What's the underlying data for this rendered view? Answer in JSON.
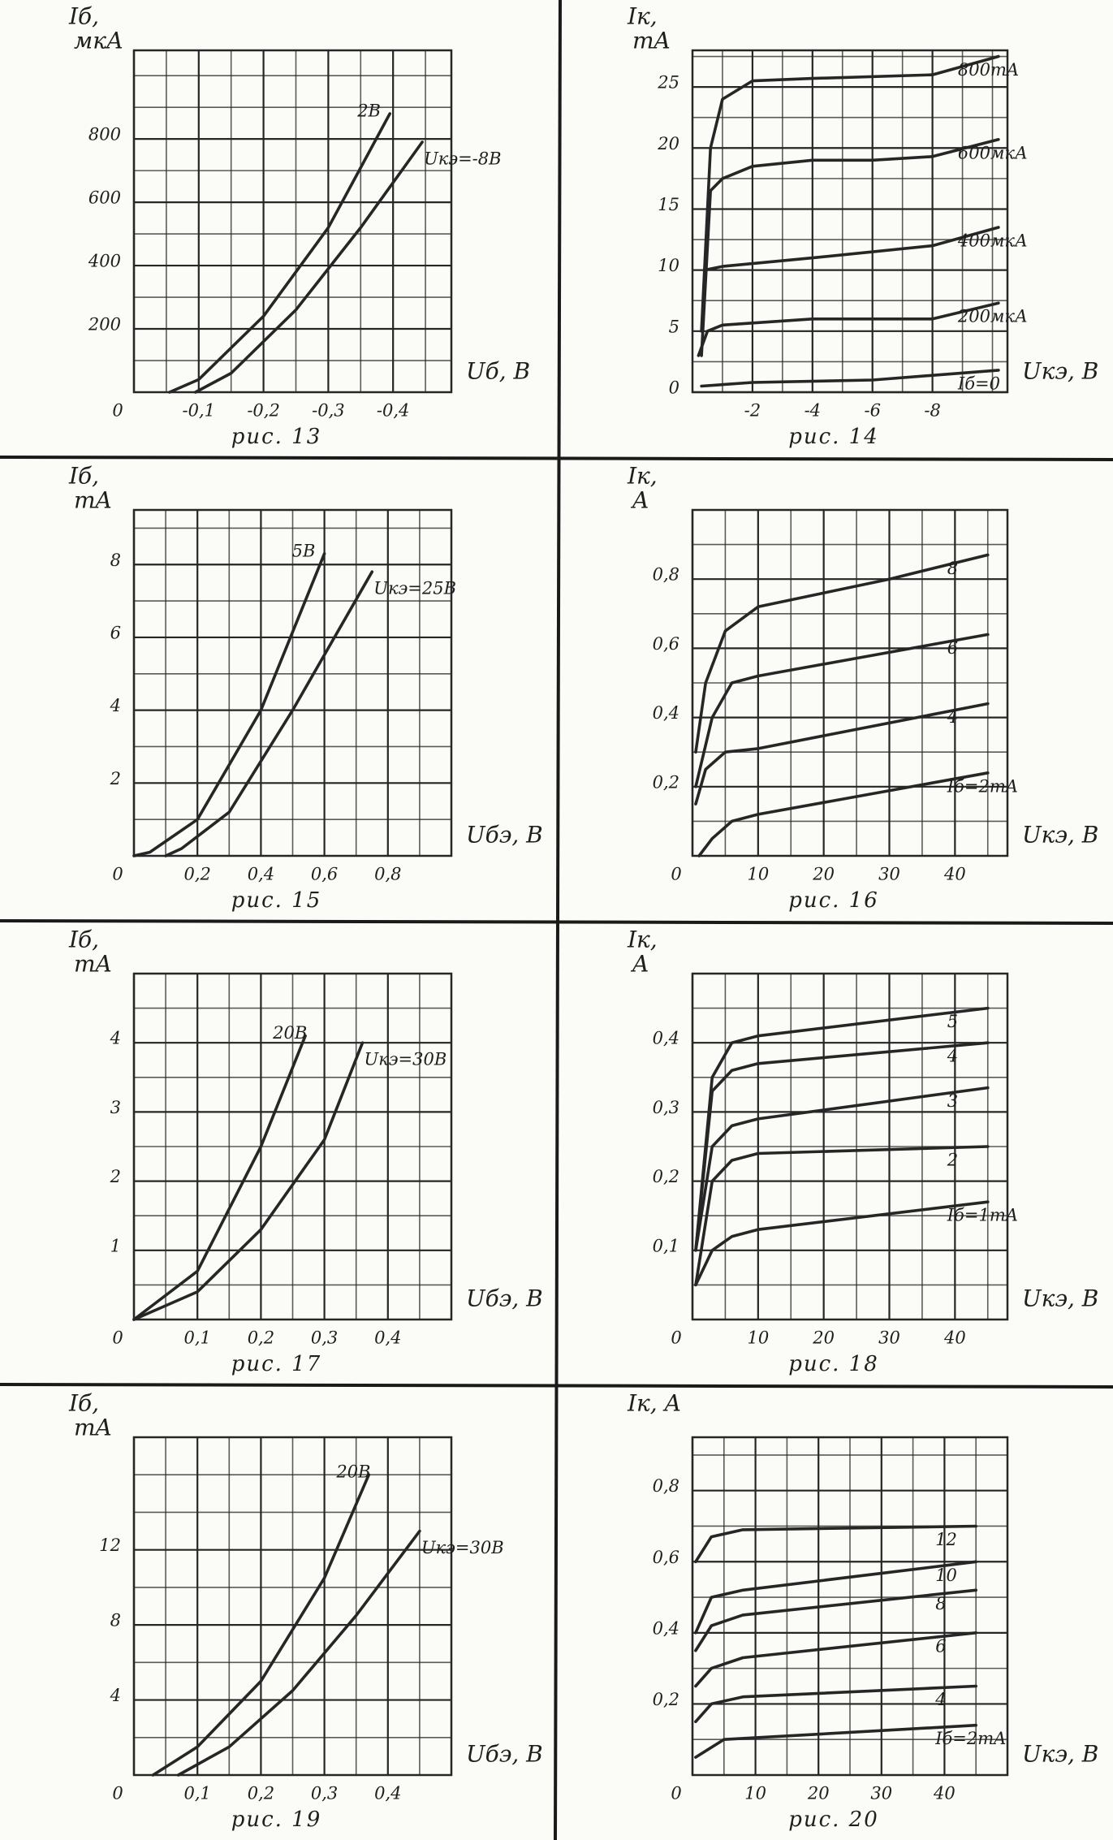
{
  "chart_data": [
    {
      "type": "line",
      "caption": "рис. 13",
      "ylabel": [
        "Iб,",
        "мкА"
      ],
      "xlabel": "Uб, В",
      "color": "#262626",
      "grid": true,
      "xlim": [
        0,
        -0.49
      ],
      "ylim": [
        0,
        1080
      ],
      "xticks": [
        0,
        {
          "value": -0.1,
          "label": "-0,1"
        },
        {
          "value": -0.2,
          "label": "-0,2"
        },
        {
          "value": -0.3,
          "label": "-0,3"
        },
        {
          "value": -0.4,
          "label": "-0,4"
        }
      ],
      "yticks": [
        200,
        400,
        600,
        800
      ],
      "series": [
        {
          "name": "2В",
          "x": [
            -0.055,
            -0.1,
            -0.2,
            -0.3,
            -0.395
          ],
          "values": [
            0,
            40,
            240,
            520,
            880
          ]
        },
        {
          "name": "Uкэ=-8В",
          "x": [
            -0.095,
            -0.15,
            -0.25,
            -0.35,
            -0.445
          ],
          "values": [
            0,
            60,
            260,
            520,
            790
          ]
        }
      ]
    },
    {
      "type": "line",
      "caption": "рис. 14",
      "ylabel": [
        "Iк,",
        "mA"
      ],
      "xlabel": "Uкэ, В",
      "color": "#262626",
      "grid": true,
      "xlim": [
        0,
        -10.5
      ],
      "ylim": [
        0,
        28
      ],
      "xticks": [
        -2,
        -4,
        -6,
        -8
      ],
      "yticks": [
        0,
        5,
        10,
        15,
        20,
        25
      ],
      "series": [
        {
          "name": "800mA",
          "x": [
            -0.3,
            -0.6,
            -1,
            -2,
            -4,
            -8,
            -10.2
          ],
          "values": [
            5,
            20,
            24,
            25.5,
            25.7,
            26,
            27.5
          ]
        },
        {
          "name": "600мкА",
          "x": [
            -0.3,
            -0.6,
            -1,
            -2,
            -4,
            -6,
            -8,
            -10.2
          ],
          "values": [
            3,
            16.5,
            17.5,
            18.5,
            19,
            19,
            19.3,
            20.7
          ]
        },
        {
          "name": "400мкА",
          "x": [
            -0.4,
            -1,
            -4,
            -8,
            -10.2
          ],
          "values": [
            10,
            10.3,
            11,
            12,
            13.5
          ]
        },
        {
          "name": "200мкА",
          "x": [
            -0.2,
            -0.5,
            -1,
            -4,
            -8,
            -10.2
          ],
          "values": [
            3,
            5,
            5.5,
            6,
            6,
            7.3
          ]
        },
        {
          "name": "Iб=0",
          "x": [
            -0.3,
            -2,
            -6,
            -10.2
          ],
          "values": [
            0.5,
            0.8,
            1,
            1.8
          ]
        }
      ]
    },
    {
      "type": "line",
      "caption": "рис. 15",
      "ylabel": [
        "Iб,",
        "mA"
      ],
      "xlabel": "Uбэ, В",
      "color": "#262626",
      "grid": true,
      "xlim": [
        0,
        1.0
      ],
      "ylim": [
        0,
        9.5
      ],
      "xticks": [
        0,
        {
          "value": 0.2,
          "label": "0,2"
        },
        {
          "value": 0.4,
          "label": "0,4"
        },
        {
          "value": 0.6,
          "label": "0,6"
        },
        {
          "value": 0.8,
          "label": "0,8"
        }
      ],
      "yticks": [
        2,
        4,
        6,
        8
      ],
      "series": [
        {
          "name": "5В",
          "x": [
            0,
            0.05,
            0.2,
            0.4,
            0.6
          ],
          "values": [
            0,
            0.1,
            1,
            4,
            8.3
          ]
        },
        {
          "name": "Uкэ=25В",
          "x": [
            0.1,
            0.15,
            0.3,
            0.5,
            0.75
          ],
          "values": [
            0,
            0.2,
            1.2,
            4,
            7.8
          ]
        }
      ]
    },
    {
      "type": "line",
      "caption": "рис. 16",
      "ylabel": [
        "Iк,",
        "A"
      ],
      "xlabel": "Uкэ, В",
      "color": "#262626",
      "grid": true,
      "xlim": [
        0,
        48
      ],
      "ylim": [
        0,
        1.0
      ],
      "xticks": [
        0,
        10,
        20,
        30,
        40
      ],
      "yticks": [
        {
          "value": 0.2,
          "label": "0,2"
        },
        {
          "value": 0.4,
          "label": "0,4"
        },
        {
          "value": 0.6,
          "label": "0,6"
        },
        {
          "value": 0.8,
          "label": "0,8"
        }
      ],
      "series": [
        {
          "name": "8",
          "x": [
            0.5,
            2,
            5,
            10,
            20,
            30,
            45
          ],
          "values": [
            0.3,
            0.5,
            0.65,
            0.72,
            0.76,
            0.8,
            0.87
          ]
        },
        {
          "name": "6",
          "x": [
            0.5,
            3,
            6,
            10,
            45
          ],
          "values": [
            0.2,
            0.4,
            0.5,
            0.52,
            0.64
          ]
        },
        {
          "name": "4",
          "x": [
            0.5,
            2,
            5,
            10,
            45
          ],
          "values": [
            0.15,
            0.25,
            0.3,
            0.31,
            0.44
          ]
        },
        {
          "name": "Iб=2mA",
          "x": [
            1,
            3,
            6,
            10,
            45
          ],
          "values": [
            0,
            0.05,
            0.1,
            0.12,
            0.24
          ]
        }
      ]
    },
    {
      "type": "line",
      "caption": "рис. 17",
      "ylabel": [
        "Iб,",
        "mA"
      ],
      "xlabel": "Uбэ, В",
      "color": "#262626",
      "grid": true,
      "xlim": [
        0,
        0.5
      ],
      "ylim": [
        0,
        5
      ],
      "xticks": [
        0,
        {
          "value": 0.1,
          "label": "0,1"
        },
        {
          "value": 0.2,
          "label": "0,2"
        },
        {
          "value": 0.3,
          "label": "0,3"
        },
        {
          "value": 0.4,
          "label": "0,4"
        }
      ],
      "yticks": [
        1,
        2,
        3,
        4
      ],
      "series": [
        {
          "name": "20В",
          "x": [
            0,
            0.1,
            0.2,
            0.27
          ],
          "values": [
            0,
            0.7,
            2.5,
            4.1
          ]
        },
        {
          "name": "Uкэ=30В",
          "x": [
            0,
            0.1,
            0.2,
            0.3,
            0.36
          ],
          "values": [
            0,
            0.4,
            1.3,
            2.6,
            4
          ]
        }
      ]
    },
    {
      "type": "line",
      "caption": "рис. 18",
      "ylabel": [
        "Iк,",
        "A"
      ],
      "xlabel": "Uкэ, В",
      "color": "#262626",
      "grid": true,
      "xlim": [
        0,
        48
      ],
      "ylim": [
        0,
        0.5
      ],
      "xticks": [
        0,
        10,
        20,
        30,
        40
      ],
      "yticks": [
        {
          "value": 0.1,
          "label": "0,1"
        },
        {
          "value": 0.2,
          "label": "0,2"
        },
        {
          "value": 0.3,
          "label": "0,3"
        },
        {
          "value": 0.4,
          "label": "0,4"
        }
      ],
      "series": [
        {
          "name": "5",
          "x": [
            0.5,
            3,
            6,
            10,
            45
          ],
          "values": [
            0.1,
            0.35,
            0.4,
            0.41,
            0.45
          ]
        },
        {
          "name": "4",
          "x": [
            0.5,
            3,
            6,
            10,
            45
          ],
          "values": [
            0.1,
            0.33,
            0.36,
            0.37,
            0.4
          ]
        },
        {
          "name": "3",
          "x": [
            0.5,
            3,
            6,
            10,
            45
          ],
          "values": [
            0.1,
            0.25,
            0.28,
            0.29,
            0.335
          ]
        },
        {
          "name": "2",
          "x": [
            0.5,
            3,
            6,
            10,
            45
          ],
          "values": [
            0.05,
            0.2,
            0.23,
            0.24,
            0.25
          ]
        },
        {
          "name": "Iб=1mA",
          "x": [
            0.5,
            3,
            6,
            10,
            45
          ],
          "values": [
            0.05,
            0.1,
            0.12,
            0.13,
            0.17
          ]
        }
      ]
    },
    {
      "type": "line",
      "caption": "рис. 19",
      "ylabel": [
        "Iб,",
        "mA"
      ],
      "xlabel": "Uбэ, В",
      "color": "#262626",
      "grid": true,
      "xlim": [
        0,
        0.5
      ],
      "ylim": [
        0,
        18
      ],
      "xticks": [
        0,
        {
          "value": 0.1,
          "label": "0,1"
        },
        {
          "value": 0.2,
          "label": "0,2"
        },
        {
          "value": 0.3,
          "label": "0,3"
        },
        {
          "value": 0.4,
          "label": "0,4"
        }
      ],
      "yticks": [
        4,
        8,
        12
      ],
      "series": [
        {
          "name": "20В",
          "x": [
            0.03,
            0.1,
            0.2,
            0.3,
            0.37
          ],
          "values": [
            0,
            1.5,
            5,
            10.5,
            16
          ]
        },
        {
          "name": "Uкэ=30В",
          "x": [
            0.07,
            0.15,
            0.25,
            0.35,
            0.45
          ],
          "values": [
            0,
            1.5,
            4.5,
            8.5,
            13
          ]
        }
      ]
    },
    {
      "type": "line",
      "caption": "рис. 20",
      "ylabel": [
        "Iк, A"
      ],
      "xlabel": "Uкэ, В",
      "color": "#262626",
      "grid": true,
      "xlim": [
        0,
        50
      ],
      "ylim": [
        0,
        0.95
      ],
      "xticks": [
        0,
        10,
        20,
        30,
        40
      ],
      "yticks": [
        {
          "value": 0.2,
          "label": "0,2"
        },
        {
          "value": 0.4,
          "label": "0,4"
        },
        {
          "value": 0.6,
          "label": "0,6"
        },
        {
          "value": 0.8,
          "label": "0,8"
        }
      ],
      "series": [
        {
          "name": "12",
          "x": [
            0.5,
            3,
            8,
            45
          ],
          "values": [
            0.6,
            0.67,
            0.69,
            0.7
          ]
        },
        {
          "name": "10",
          "x": [
            0.5,
            3,
            8,
            45
          ],
          "values": [
            0.4,
            0.5,
            0.52,
            0.6
          ]
        },
        {
          "name": "8",
          "x": [
            0.5,
            3,
            8,
            45
          ],
          "values": [
            0.35,
            0.42,
            0.45,
            0.52
          ]
        },
        {
          "name": "6",
          "x": [
            0.5,
            3,
            8,
            45
          ],
          "values": [
            0.25,
            0.3,
            0.33,
            0.4
          ]
        },
        {
          "name": "4",
          "x": [
            0.5,
            3,
            8,
            45
          ],
          "values": [
            0.15,
            0.2,
            0.22,
            0.25
          ]
        },
        {
          "name": "Iб=2mA",
          "x": [
            0.5,
            5,
            45
          ],
          "values": [
            0.05,
            0.1,
            0.14
          ]
        }
      ]
    }
  ]
}
